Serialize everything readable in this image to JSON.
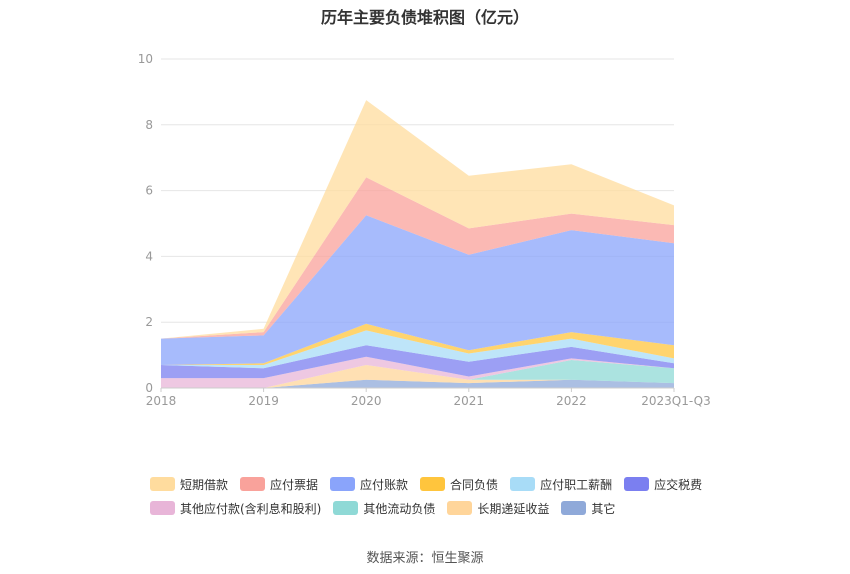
{
  "title": "历年主要负债堆积图（亿元）",
  "source": "数据来源：恒生聚源",
  "chart_data": {
    "type": "area",
    "stacked": true,
    "categories": [
      "2018",
      "2019",
      "2020",
      "2021",
      "2022",
      "2023Q1-Q3"
    ],
    "ylim": [
      0,
      10
    ],
    "yticks": [
      0,
      2,
      4,
      6,
      8,
      10
    ],
    "grid": true,
    "legend_position": "bottom",
    "series": [
      {
        "name": "其它",
        "color": "#8fa9d9",
        "values": [
          0.0,
          0.0,
          0.25,
          0.15,
          0.25,
          0.15
        ]
      },
      {
        "name": "长期递延收益",
        "color": "#ffd59a",
        "values": [
          0.0,
          0.0,
          0.45,
          0.1,
          0.0,
          0.0
        ]
      },
      {
        "name": "其他流动负债",
        "color": "#8fd9d6",
        "values": [
          0.0,
          0.0,
          0.0,
          0.0,
          0.6,
          0.45
        ]
      },
      {
        "name": "其他应付款(含利息和股利)",
        "color": "#e8b5d8",
        "values": [
          0.3,
          0.3,
          0.25,
          0.1,
          0.05,
          0.0
        ]
      },
      {
        "name": "应交税费",
        "color": "#7b7ff0",
        "values": [
          0.4,
          0.3,
          0.35,
          0.45,
          0.35,
          0.15
        ]
      },
      {
        "name": "应付职工薪酬",
        "color": "#a8dcf7",
        "values": [
          0.0,
          0.1,
          0.45,
          0.25,
          0.25,
          0.15
        ]
      },
      {
        "name": "合同负债",
        "color": "#ffc53d",
        "values": [
          0.0,
          0.05,
          0.2,
          0.1,
          0.2,
          0.4
        ]
      },
      {
        "name": "应付账款",
        "color": "#8aa4fb",
        "values": [
          0.8,
          0.85,
          3.3,
          2.9,
          3.1,
          3.1
        ]
      },
      {
        "name": "应付票据",
        "color": "#f9a29b",
        "values": [
          0.0,
          0.1,
          1.15,
          0.8,
          0.5,
          0.55
        ]
      },
      {
        "name": "短期借款",
        "color": "#ffdc9e",
        "values": [
          0.0,
          0.1,
          2.35,
          1.6,
          1.5,
          0.6
        ]
      }
    ]
  },
  "legend": {
    "rows": [
      [
        {
          "name": "短期借款",
          "color": "#ffdc9e"
        },
        {
          "name": "应付票据",
          "color": "#f9a29b"
        },
        {
          "name": "应付账款",
          "color": "#8aa4fb"
        },
        {
          "name": "合同负债",
          "color": "#ffc53d"
        },
        {
          "name": "应付职工薪酬",
          "color": "#a8dcf7"
        },
        {
          "name": "应交税费",
          "color": "#7b7ff0"
        }
      ],
      [
        {
          "name": "其他应付款(含利息和股利)",
          "color": "#e8b5d8"
        },
        {
          "name": "其他流动负债",
          "color": "#8fd9d6"
        },
        {
          "name": "长期递延收益",
          "color": "#ffd59a"
        },
        {
          "name": "其它",
          "color": "#8fa9d9"
        }
      ]
    ]
  }
}
